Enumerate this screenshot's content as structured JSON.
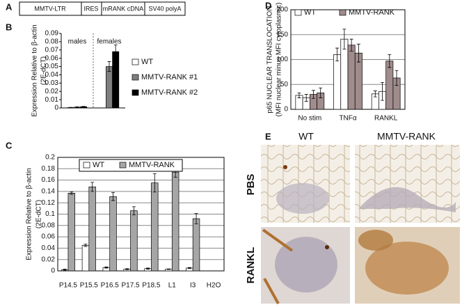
{
  "panel_labels": {
    "a": "A",
    "b": "B",
    "c": "C",
    "d": "D",
    "e": "E"
  },
  "construct": [
    "MMTV-LTR",
    "IRES",
    "mRANK cDNA",
    "SV40 polyA"
  ],
  "chart_data": [
    {
      "type": "bar",
      "y_label": [
        "Expression Relative to β-actin",
        "(2E-dCT)"
      ],
      "categories": [
        "males",
        "females"
      ],
      "series": [
        {
          "name": "WT",
          "color": "#ffffff",
          "values": [
            0.0005,
            0
          ],
          "errors": [
            0.0002,
            0
          ]
        },
        {
          "name": "MMTV-RANK #1",
          "color": "#7f7f7f",
          "values": [
            0.001,
            0.05
          ],
          "errors": [
            0.0003,
            0.006
          ]
        },
        {
          "name": "MMTV-RANK #2",
          "color": "#000000",
          "values": [
            0.0015,
            0.068
          ],
          "errors": [
            0.0004,
            0.008
          ]
        }
      ],
      "ylim": [
        0,
        0.09
      ],
      "yticks": [
        0,
        0.01,
        0.02,
        0.03,
        0.04,
        0.05,
        0.06,
        0.07,
        0.08,
        0.09
      ],
      "grid": false
    },
    {
      "type": "bar",
      "y_label": [
        "Expression Relative to β-actin",
        "(2E-dCT)"
      ],
      "categories": [
        "P14.5",
        "P15.5",
        "P16.5",
        "P17.5",
        "P18.5",
        "L1",
        "I3",
        "H2O"
      ],
      "series": [
        {
          "name": "WT",
          "color": "#ffffff",
          "values": [
            0.002,
            0.045,
            0.006,
            0.003,
            0.004,
            0.003,
            0.005,
            0
          ],
          "errors": [
            0.001,
            0.002,
            0.001,
            0.001,
            0.001,
            0.0005,
            0.001,
            0
          ]
        },
        {
          "name": "MMTV-RANK",
          "color": "#a6a6a6",
          "values": [
            0.137,
            0.148,
            0.131,
            0.106,
            0.155,
            0.174,
            0.092,
            0
          ],
          "errors": [
            0.002,
            0.008,
            0.007,
            0.007,
            0.016,
            0.009,
            0.009,
            0
          ]
        }
      ],
      "ylim": [
        0,
        0.2
      ],
      "yticks": [
        0,
        0.02,
        0.04,
        0.06,
        0.08,
        0.1,
        0.12,
        0.14,
        0.16,
        0.18,
        0.2
      ],
      "grid": true
    },
    {
      "type": "bar",
      "y_label": [
        "p65 NUCLEAR TRANSLOCATION",
        "(MFI nuclear minus MFI cytoplasmic)"
      ],
      "categories": [
        "No stim",
        "TNFα",
        "RANKL"
      ],
      "series": [
        {
          "name": "WT",
          "color": "#ffffff",
          "values": [
            [
              28,
              23
            ],
            [
              110,
              141
            ],
            [
              31,
              36
            ]
          ],
          "errors": [
            [
              5,
              7
            ],
            [
              13,
              20
            ],
            [
              6,
              18
            ]
          ]
        },
        {
          "name": "MMTV-RANK",
          "color": "#a08c8c",
          "values": [
            [
              30,
              33
            ],
            [
              129,
              113
            ],
            [
              97,
              63
            ]
          ],
          "errors": [
            [
              8,
              10
            ],
            [
              12,
              18
            ],
            [
              13,
              15
            ]
          ]
        }
      ],
      "ylim": [
        0,
        200
      ],
      "yticks": [
        0,
        50,
        100,
        150,
        200
      ],
      "grid": true
    }
  ],
  "micrographs": {
    "columns": [
      "WT",
      "MMTV-RANK"
    ],
    "rows": [
      "PBS",
      "RANKL"
    ]
  }
}
